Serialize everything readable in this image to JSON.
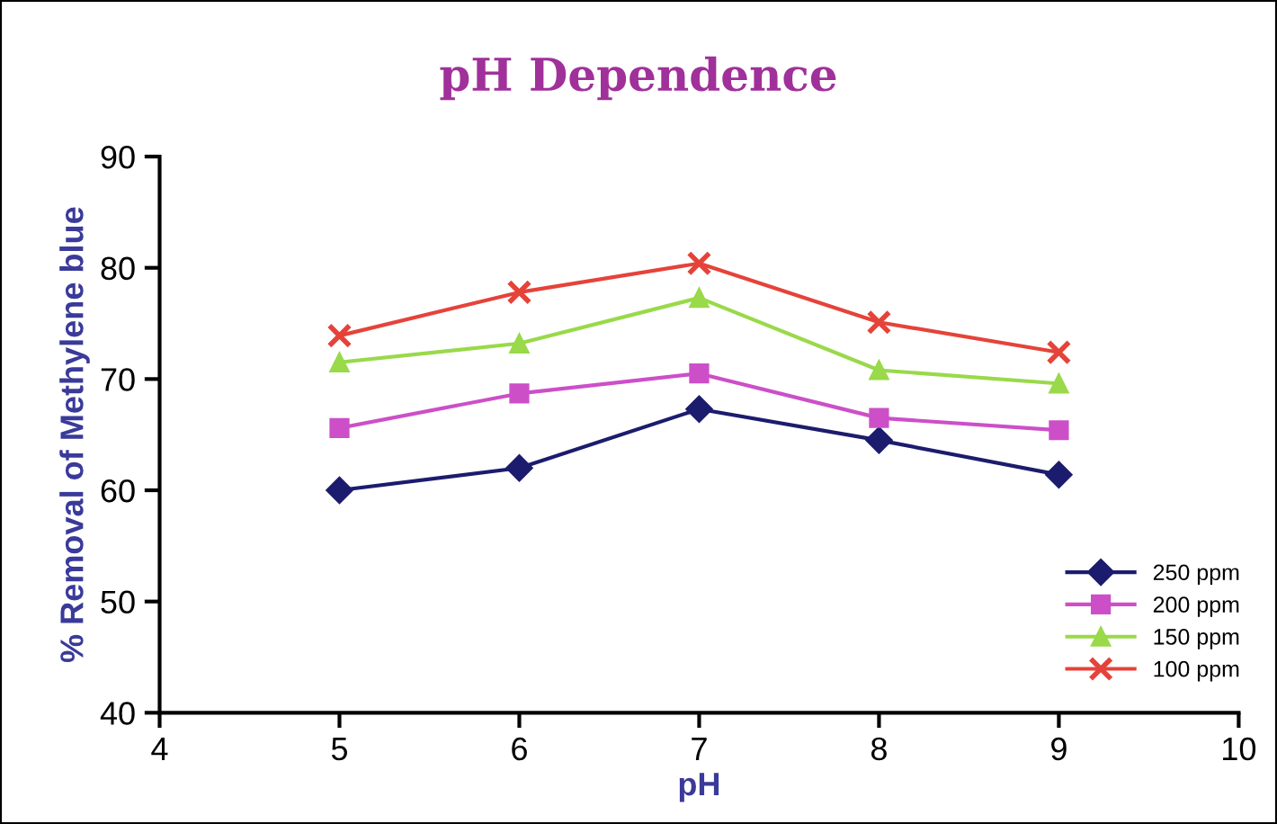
{
  "chart_data": {
    "type": "line",
    "title": "pH Dependence",
    "xlabel": "pH",
    "ylabel": "% Removal of Methylene blue",
    "x": [
      5,
      6,
      7,
      8,
      9
    ],
    "series": [
      {
        "name": "250 ppm",
        "color": "#1c1c6e",
        "marker": "diamond",
        "values": [
          60.0,
          62.0,
          67.3,
          64.5,
          61.4
        ]
      },
      {
        "name": "200 ppm",
        "color": "#cc4fc8",
        "marker": "square",
        "values": [
          65.6,
          68.7,
          70.5,
          66.5,
          65.4
        ]
      },
      {
        "name": "150 ppm",
        "color": "#99d94a",
        "marker": "triangle",
        "values": [
          71.5,
          73.2,
          77.3,
          70.8,
          69.6
        ]
      },
      {
        "name": "100 ppm",
        "color": "#e5433a",
        "marker": "cross",
        "values": [
          73.9,
          77.8,
          80.4,
          75.1,
          72.4
        ]
      }
    ],
    "xlim": [
      4,
      10
    ],
    "ylim": [
      40,
      90
    ],
    "xticks": [
      4,
      5,
      6,
      7,
      8,
      9,
      10
    ],
    "yticks": [
      40,
      50,
      60,
      70,
      80,
      90
    ],
    "grid": false,
    "legend": "bottom right",
    "line_style": "solid"
  }
}
